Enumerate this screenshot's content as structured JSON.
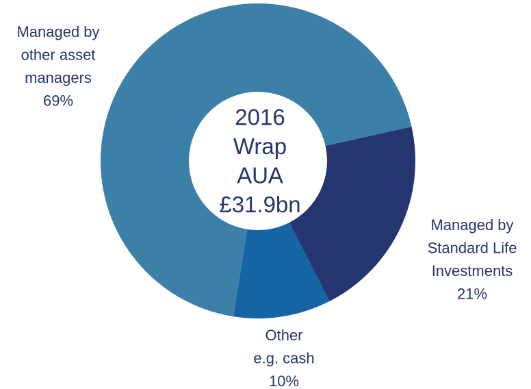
{
  "chart_data": {
    "type": "donut",
    "center_label": [
      "2016",
      "Wrap",
      "AUA",
      "£31.9bn"
    ],
    "categories": [
      [
        "Managed by",
        "Standard Life",
        "Investments"
      ],
      [
        "Other",
        "e.g. cash"
      ],
      [
        "Managed by",
        "other asset",
        "managers"
      ]
    ],
    "values": [
      21,
      10,
      69
    ],
    "value_labels": [
      "21%",
      "10%",
      "69%"
    ],
    "colors": [
      "#253570",
      "#1565a5",
      "#3d80a7"
    ]
  }
}
